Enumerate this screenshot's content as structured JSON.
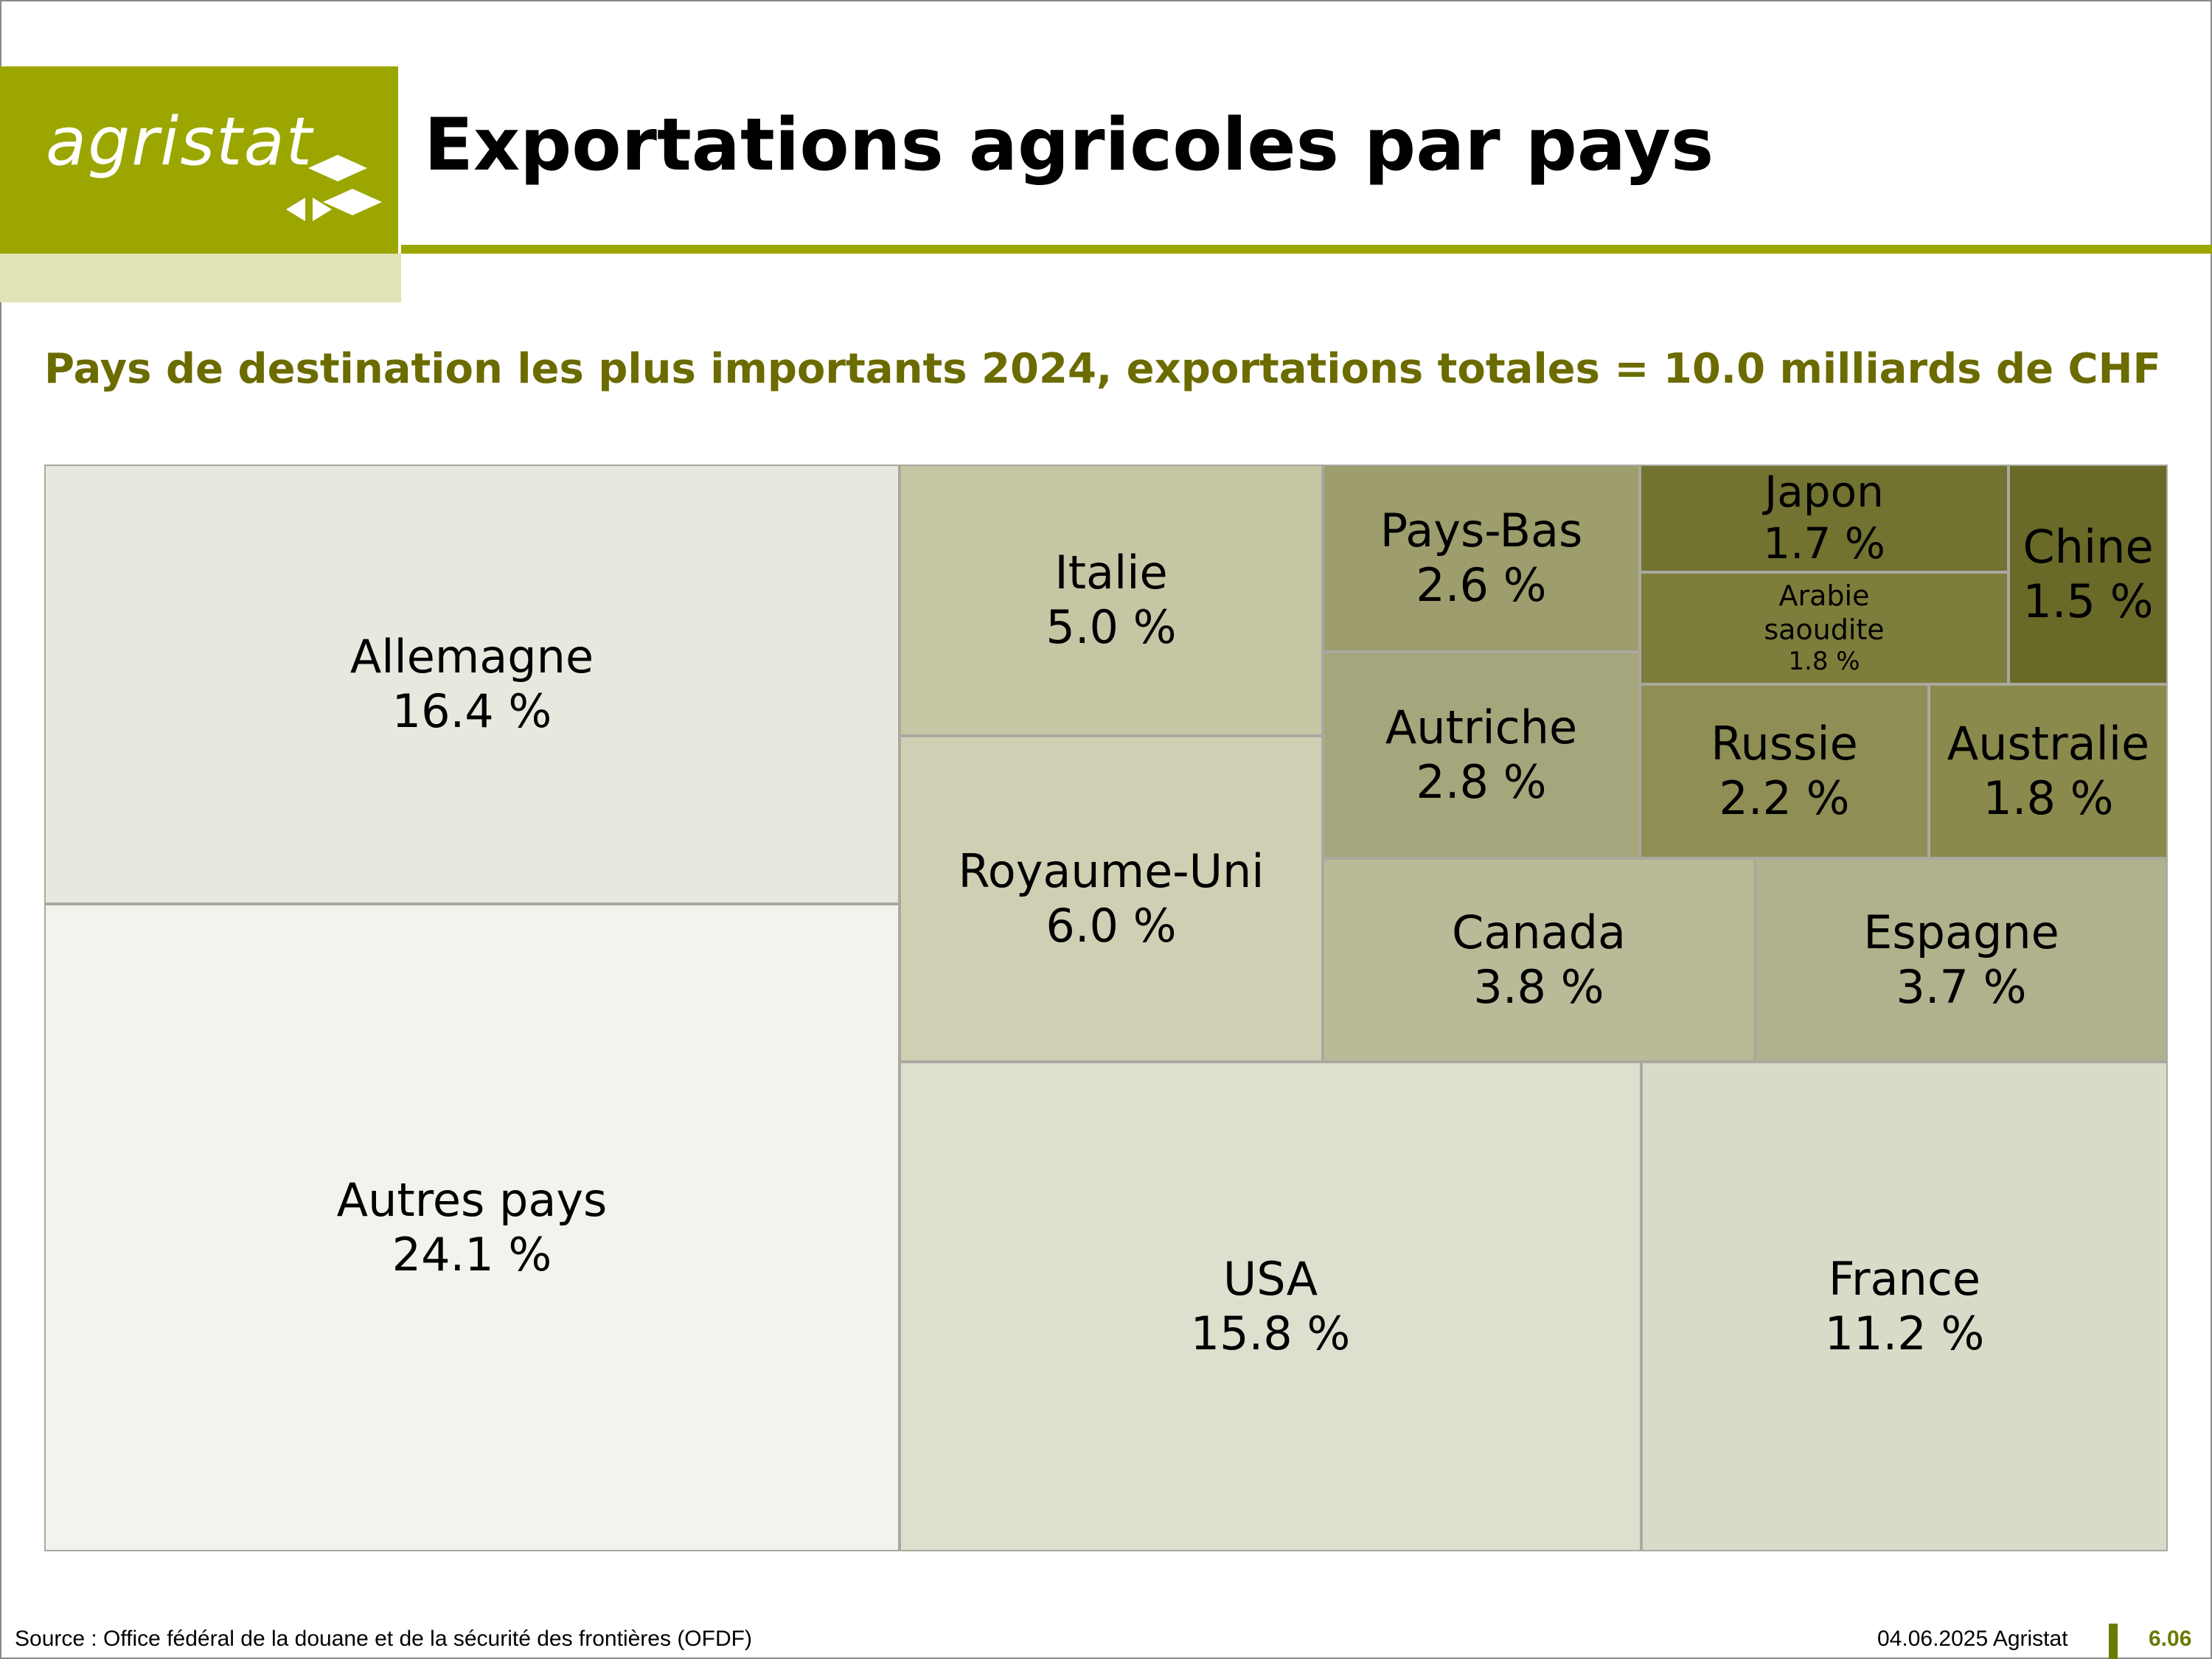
{
  "logo": {
    "text": "agristat"
  },
  "header": {
    "title": "Exportations agricoles par pays"
  },
  "colors": {
    "brand_olive": "#9ca600",
    "brand_light": "#e0e3b6",
    "subtitle": "#6b6b00",
    "footer_accent": "#6b7a00"
  },
  "chart_data": {
    "type": "treemap",
    "title": "Pays de destination les plus importants 2024, exportations totales = 10.0 milliards de CHF",
    "unit": "%",
    "items": [
      {
        "name": "Autres pays",
        "value": 24.1,
        "label": "24.1 %",
        "color": "#f3f3ee"
      },
      {
        "name": "Allemagne",
        "value": 16.4,
        "label": "16.4 %",
        "color": "#e9e8df"
      },
      {
        "name": "USA",
        "value": 15.8,
        "label": "15.8 %",
        "color": "#dedfcf"
      },
      {
        "name": "France",
        "value": 11.2,
        "label": "11.2 %",
        "color": "#d9dac8"
      },
      {
        "name": "Royaume-Uni",
        "value": 6.0,
        "label": "6.0 %",
        "color": "#cfcfb4"
      },
      {
        "name": "Italie",
        "value": 5.0,
        "label": "5.0 %",
        "color": "#c6c6a5"
      },
      {
        "name": "Canada",
        "value": 3.8,
        "label": "3.8 %",
        "color": "#b9ba97"
      },
      {
        "name": "Espagne",
        "value": 3.7,
        "label": "3.7 %",
        "color": "#b0b18d"
      },
      {
        "name": "Autriche",
        "value": 2.8,
        "label": "2.8 %",
        "color": "#a6a67d"
      },
      {
        "name": "Pays-Bas",
        "value": 2.6,
        "label": "2.6 %",
        "color": "#9d9d6d"
      },
      {
        "name": "Russie",
        "value": 2.2,
        "label": "2.2 %",
        "color": "#8f8f55"
      },
      {
        "name": "Australie",
        "value": 1.8,
        "label": "1.8 %",
        "color": "#8a8a4c"
      },
      {
        "name": "Arabie saoudite",
        "value": 1.8,
        "label": "1.8 %",
        "color": "#7e7e3c"
      },
      {
        "name": "Japon",
        "value": 1.7,
        "label": "1.7 %",
        "color": "#727330"
      },
      {
        "name": "Chine",
        "value": 1.5,
        "label": "1.5 %",
        "color": "#696a28"
      }
    ]
  },
  "footer": {
    "source": "Source : Office fédéral de la douane et de la sécurité des frontières (OFDF)",
    "date": "04.06.2025 Agristat",
    "slide_number": "6.06"
  }
}
